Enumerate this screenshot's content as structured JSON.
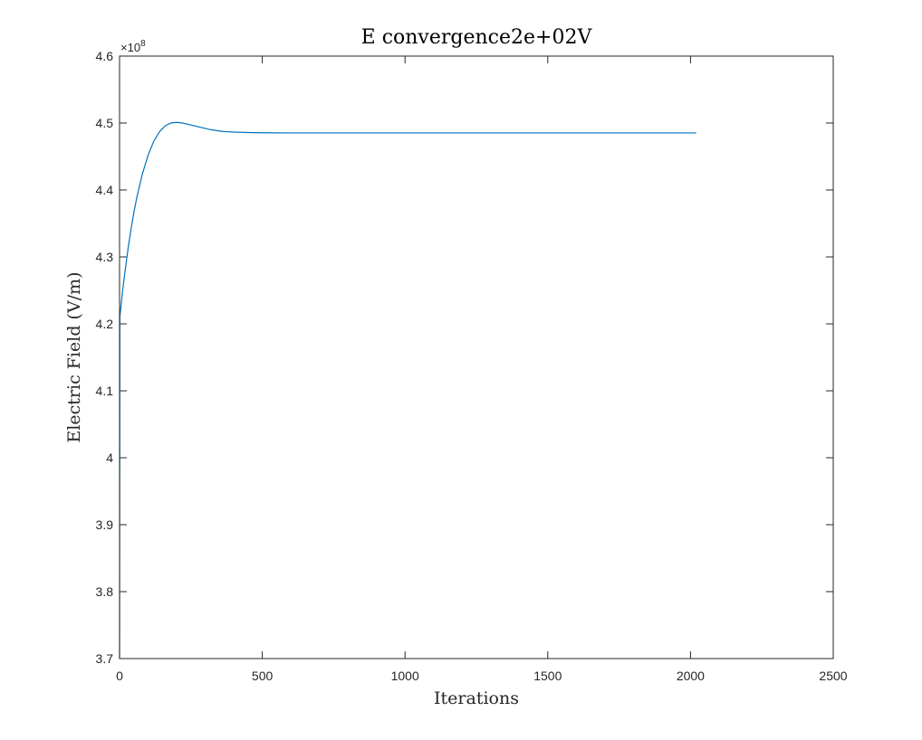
{
  "chart_data": {
    "type": "line",
    "title": "E convergence2e+02V",
    "xlabel": "Iterations",
    "ylabel": "Electric Field (V/m)",
    "y_exponent_label": {
      "prefix": "×10",
      "power": "8"
    },
    "xlim": [
      0,
      2500
    ],
    "ylim": [
      3.7,
      4.6
    ],
    "x_ticks": [
      0,
      500,
      1000,
      1500,
      2000,
      2500
    ],
    "x_tick_labels": [
      "0",
      "500",
      "1000",
      "1500",
      "2000",
      "2500"
    ],
    "y_ticks": [
      3.7,
      3.8,
      3.9,
      4.0,
      4.1,
      4.2,
      4.3,
      4.4,
      4.5,
      4.6
    ],
    "y_tick_labels": [
      "3.7",
      "3.8",
      "3.9",
      "4",
      "4.1",
      "4.2",
      "4.3",
      "4.4",
      "4.5",
      "4.6"
    ],
    "grid": false,
    "line_color": "#0072bd",
    "series": [
      {
        "x": [
          0,
          1,
          10,
          20,
          30,
          40,
          50,
          60,
          80,
          100,
          120,
          140,
          160,
          180,
          200,
          220,
          250,
          280,
          320,
          360,
          400,
          450,
          500,
          550,
          600,
          700,
          800,
          1000,
          1200,
          1500,
          1800,
          2020
        ],
        "values": [
          3.7,
          4.21,
          4.247,
          4.281,
          4.313,
          4.341,
          4.366,
          4.388,
          4.424,
          4.452,
          4.473,
          4.487,
          4.496,
          4.5,
          4.501,
          4.5,
          4.497,
          4.494,
          4.49,
          4.4875,
          4.4865,
          4.4858,
          4.4855,
          4.4853,
          4.4852,
          4.4852,
          4.4852,
          4.4852,
          4.4852,
          4.4852,
          4.4852,
          4.4852
        ]
      }
    ]
  }
}
